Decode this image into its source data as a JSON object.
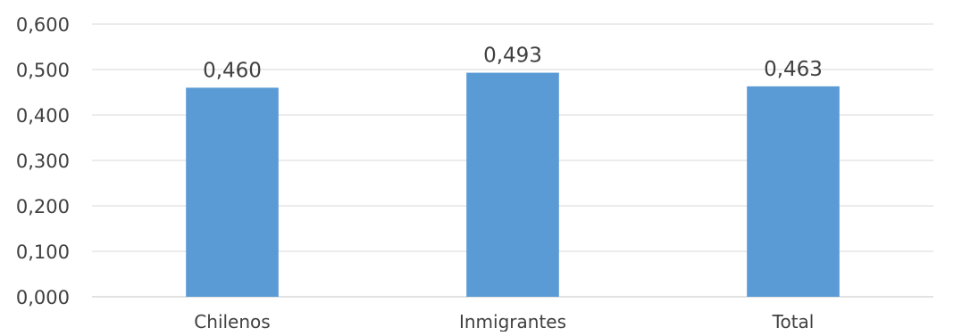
{
  "chart_data": {
    "type": "bar",
    "title": "",
    "xlabel": "",
    "ylabel": "",
    "categories": [
      "Chilenos",
      "Inmigrantes",
      "Total"
    ],
    "values": [
      0.46,
      0.493,
      0.463
    ],
    "value_labels": [
      "0,460",
      "0,493",
      "0,463"
    ],
    "ylim": [
      0,
      0.6
    ],
    "yticks": [
      0.0,
      0.1,
      0.2,
      0.3,
      0.4,
      0.5,
      0.6
    ],
    "ytick_labels": [
      "0,000",
      "0,100",
      "0,200",
      "0,300",
      "0,400",
      "0,500",
      "0,600"
    ],
    "grid": true,
    "legend": "none",
    "colors": {
      "bar": "#5b9bd5",
      "grid": "#d9d9d9",
      "axis": "#d9d9d9",
      "text": "#404040"
    }
  }
}
